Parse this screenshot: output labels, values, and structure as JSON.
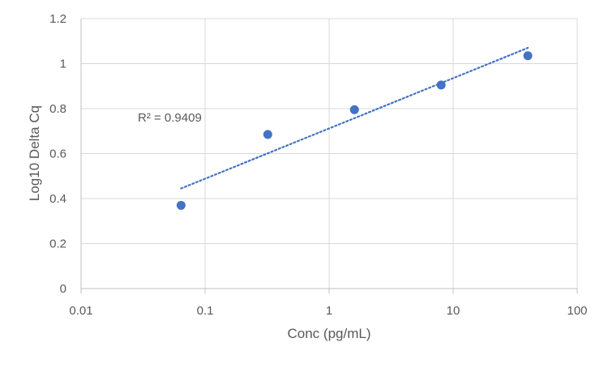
{
  "chart_data": {
    "type": "scatter",
    "title": "",
    "xlabel": "Conc (pg/mL)",
    "ylabel": "Log10 Delta Cq",
    "x_scale": "log",
    "xlim": [
      0.01,
      100
    ],
    "ylim": [
      0,
      1.2
    ],
    "x_ticks": [
      0.01,
      0.1,
      1,
      10,
      100
    ],
    "x_tick_labels": [
      "0.01",
      "0.1",
      "1",
      "10",
      "100"
    ],
    "y_ticks": [
      0,
      0.2,
      0.4,
      0.6,
      0.8,
      1,
      1.2
    ],
    "y_tick_labels": [
      "0",
      "0.2",
      "0.4",
      "0.6",
      "0.8",
      "1",
      "1.2"
    ],
    "grid": true,
    "legend": "none",
    "series": [
      {
        "x": [
          0.064,
          0.32,
          1.6,
          8,
          40
        ],
        "y": [
          0.37,
          0.685,
          0.795,
          0.905,
          1.035
        ],
        "color": "#4472C4"
      }
    ],
    "trendline": {
      "type": "logarithmic",
      "style": "dotted",
      "color": "#4472C4",
      "x_range": [
        0.064,
        40
      ],
      "y_range": [
        0.445,
        1.07
      ]
    },
    "annotations": [
      {
        "text": "R² = 0.9409"
      }
    ]
  }
}
